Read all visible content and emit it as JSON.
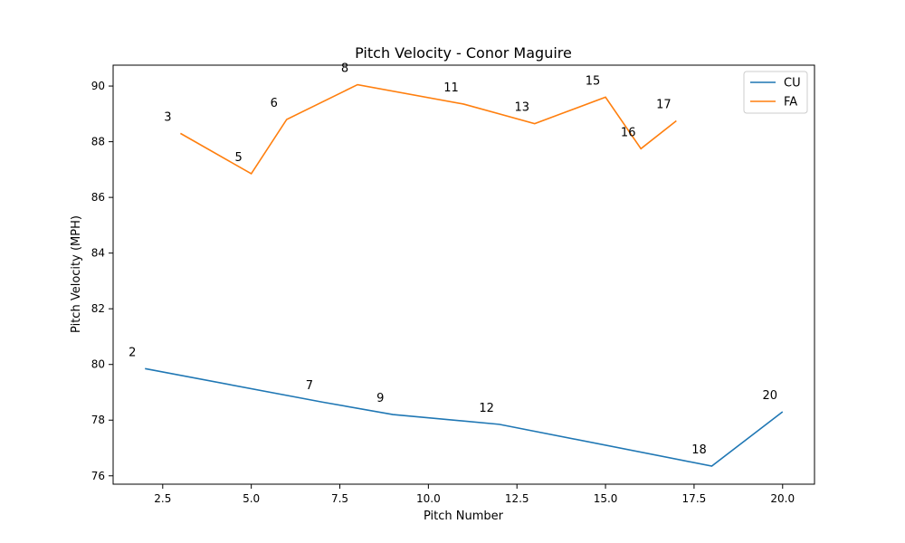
{
  "chart_data": {
    "type": "line",
    "title": "Pitch Velocity - Conor Maguire",
    "xlabel": "Pitch Number",
    "ylabel": "Pitch Velocity (MPH)",
    "xlim": [
      1.1,
      20.9
    ],
    "ylim": [
      75.7,
      90.75
    ],
    "xticks": [
      "2.5",
      "5.0",
      "7.5",
      "10.0",
      "12.5",
      "15.0",
      "17.5",
      "20.0"
    ],
    "yticks": [
      "76",
      "78",
      "80",
      "82",
      "84",
      "86",
      "88",
      "90"
    ],
    "legend_position": "top-right",
    "series": [
      {
        "name": "CU",
        "color": "#1f77b4",
        "points": [
          {
            "x": 2,
            "y": 79.85,
            "label": "2"
          },
          {
            "x": 7,
            "y": 78.65,
            "label": "7"
          },
          {
            "x": 9,
            "y": 78.2,
            "label": "9"
          },
          {
            "x": 12,
            "y": 77.85,
            "label": "12"
          },
          {
            "x": 18,
            "y": 76.35,
            "label": "18"
          },
          {
            "x": 20,
            "y": 78.3,
            "label": "20"
          }
        ]
      },
      {
        "name": "FA",
        "color": "#ff7f0e",
        "points": [
          {
            "x": 3,
            "y": 88.3,
            "label": "3"
          },
          {
            "x": 5,
            "y": 86.85,
            "label": "5"
          },
          {
            "x": 6,
            "y": 88.8,
            "label": "6"
          },
          {
            "x": 8,
            "y": 90.05,
            "label": "8"
          },
          {
            "x": 11,
            "y": 89.35,
            "label": "11"
          },
          {
            "x": 13,
            "y": 88.65,
            "label": "13"
          },
          {
            "x": 15,
            "y": 89.6,
            "label": "15"
          },
          {
            "x": 16,
            "y": 87.75,
            "label": "16"
          },
          {
            "x": 17,
            "y": 88.75,
            "label": "17"
          }
        ]
      }
    ]
  }
}
